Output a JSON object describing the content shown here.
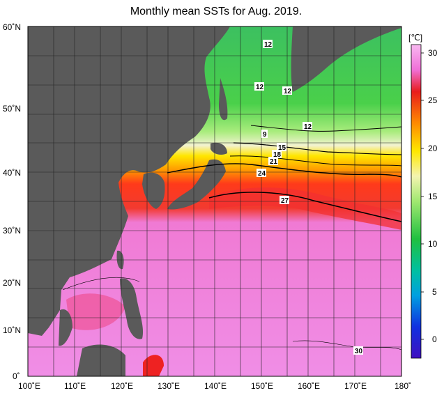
{
  "title": "Monthly mean SSTs for Aug. 2019.",
  "colorbar": {
    "unit": "[℃]",
    "ticks": [
      "30",
      "25",
      "20",
      "15",
      "10",
      "5",
      "0"
    ]
  },
  "axes": {
    "lat_labels": [
      "60˚N",
      "50˚N",
      "40˚N",
      "30˚N",
      "20˚N",
      "10˚N",
      "0˚"
    ],
    "lon_labels": [
      "100˚E",
      "110˚E",
      "120˚E",
      "130˚E",
      "140˚E",
      "150˚E",
      "160˚E",
      "170˚E",
      "180˚"
    ]
  },
  "contour_labels": [
    "12",
    "12",
    "12",
    "12",
    "9",
    "15",
    "18",
    "21",
    "24",
    "27",
    "30"
  ],
  "colors": {
    "land": "#5a5a5a",
    "sea_warm": "#f08ee6",
    "sea_hot": "#ee2222",
    "sea_orange": "#ff8800",
    "sea_yellow": "#ffe000",
    "sea_cool": "#b8f090",
    "sea_green": "#3cc83c"
  }
}
